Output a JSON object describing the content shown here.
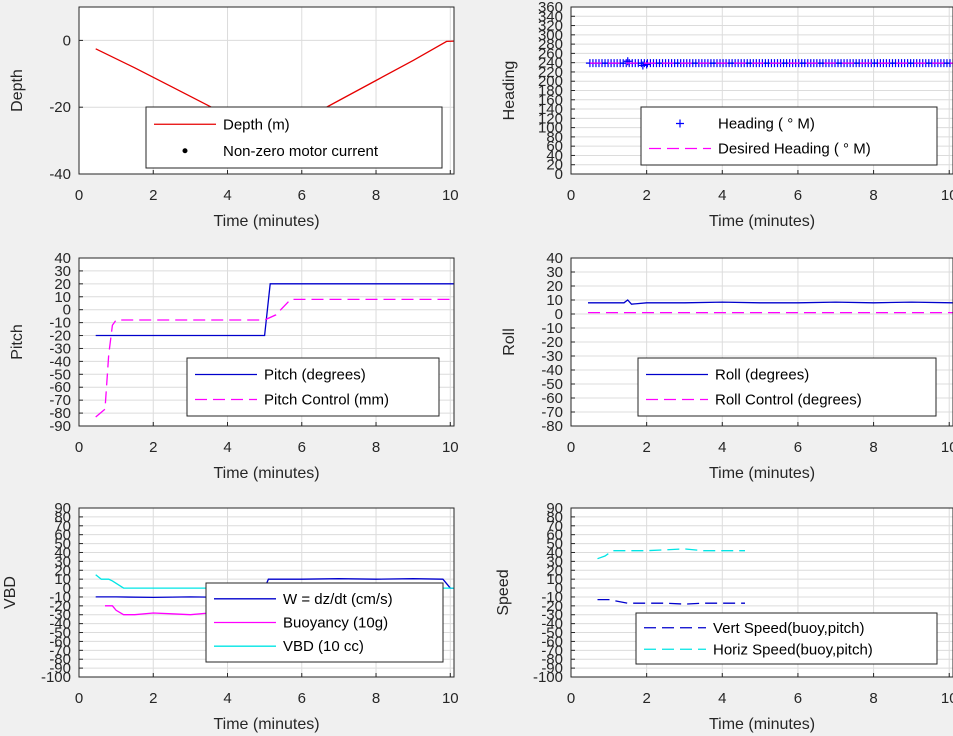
{
  "chart_data": [
    {
      "type": "line",
      "id": "depth",
      "xlabel": "Time (minutes)",
      "ylabel": "Depth",
      "xlim": [
        0,
        10.1
      ],
      "ylim": [
        -40,
        10
      ],
      "xticks": [
        "0",
        "2",
        "4",
        "6",
        "8",
        "10"
      ],
      "xtick_values": [
        0,
        2,
        4,
        6,
        8,
        10
      ],
      "yticks": [
        "0",
        "-20",
        "-40"
      ],
      "ytick_values": [
        0,
        -20,
        -40
      ],
      "grid": true,
      "legend_position": "bottom-center",
      "series": [
        {
          "name": "Depth (m)",
          "color": "#e60000",
          "style": "solid",
          "marker": "none",
          "x": [
            0.45,
            1.5,
            2.5,
            3.5,
            4.5,
            5.0,
            6.0,
            7.0,
            8.0,
            9.0,
            9.9,
            10.1
          ],
          "y": [
            -2.5,
            -8.2,
            -13.9,
            -19.6,
            -25.3,
            -29.6,
            -24.0,
            -18.0,
            -12.0,
            -6.0,
            -0.3,
            -0.2
          ]
        },
        {
          "name": "Non-zero motor current",
          "color": "#000000",
          "style": "none",
          "marker": "dot",
          "x": [
            5.25
          ],
          "y": [
            -28.0
          ]
        }
      ]
    },
    {
      "type": "scatter",
      "id": "heading",
      "xlabel": "Time (minutes)",
      "ylabel": "Heading",
      "xlim": [
        0,
        10.1
      ],
      "ylim": [
        0,
        360
      ],
      "xticks": [
        "0",
        "2",
        "4",
        "6",
        "8",
        "10"
      ],
      "xtick_values": [
        0,
        2,
        4,
        6,
        8,
        10
      ],
      "yticks": [
        "0",
        "20",
        "40",
        "60",
        "80",
        "100",
        "120",
        "140",
        "160",
        "180",
        "200",
        "220",
        "240",
        "260",
        "280",
        "300",
        "320",
        "340",
        "360"
      ],
      "ytick_values": [
        0,
        20,
        40,
        60,
        80,
        100,
        120,
        140,
        160,
        180,
        200,
        220,
        240,
        260,
        280,
        300,
        320,
        340,
        360
      ],
      "grid": true,
      "legend_position": "bottom-center",
      "series": [
        {
          "name": "Heading ( ° M)",
          "color": "#0000ff",
          "style": "none",
          "marker": "plus",
          "x_start": 0.5,
          "x_end": 10.1,
          "x_step": 0.08,
          "y_const": 239,
          "y_bumps": [
            [
              1.5,
              243
            ],
            [
              1.9,
              234
            ],
            [
              2.0,
              236
            ]
          ]
        },
        {
          "name": "Desired Heading ( ° M)",
          "color": "#ff00ff",
          "style": "dashed",
          "marker": "none",
          "x": [
            0.5,
            10.1
          ],
          "y": [
            239,
            239
          ]
        }
      ]
    },
    {
      "type": "line",
      "id": "pitch",
      "xlabel": "Time (minutes)",
      "ylabel": "Pitch",
      "xlim": [
        0,
        10.1
      ],
      "ylim": [
        -90,
        40
      ],
      "xticks": [
        "0",
        "2",
        "4",
        "6",
        "8",
        "10"
      ],
      "xtick_values": [
        0,
        2,
        4,
        6,
        8,
        10
      ],
      "yticks": [
        "40",
        "30",
        "20",
        "10",
        "0",
        "-10",
        "-20",
        "-30",
        "-40",
        "-50",
        "-60",
        "-70",
        "-80",
        "-90"
      ],
      "ytick_values": [
        40,
        30,
        20,
        10,
        0,
        -10,
        -20,
        -30,
        -40,
        -50,
        -60,
        -70,
        -80,
        -90
      ],
      "grid": true,
      "legend_position": "bottom-right",
      "series": [
        {
          "name": "Pitch (degrees)",
          "color": "#0000cc",
          "style": "solid",
          "marker": "none",
          "x": [
            0.45,
            5.0,
            5.15,
            10.1
          ],
          "y": [
            -20,
            -20,
            20,
            20
          ]
        },
        {
          "name": "Pitch Control (mm)",
          "color": "#ff00ff",
          "style": "dashed",
          "marker": "none",
          "x": [
            0.45,
            0.7,
            0.8,
            0.9,
            1.0,
            5.0,
            5.3,
            5.7,
            10.1
          ],
          "y": [
            -83,
            -77,
            -35,
            -12,
            -8,
            -8,
            -4,
            8,
            8
          ]
        }
      ]
    },
    {
      "type": "line",
      "id": "roll",
      "xlabel": "Time (minutes)",
      "ylabel": "Roll",
      "xlim": [
        0,
        10.1
      ],
      "ylim": [
        -80,
        40
      ],
      "xticks": [
        "0",
        "2",
        "4",
        "6",
        "8",
        "10"
      ],
      "xtick_values": [
        0,
        2,
        4,
        6,
        8,
        10
      ],
      "yticks": [
        "40",
        "30",
        "20",
        "10",
        "0",
        "-10",
        "-20",
        "-30",
        "-40",
        "-50",
        "-60",
        "-70",
        "-80"
      ],
      "ytick_values": [
        40,
        30,
        20,
        10,
        0,
        -10,
        -20,
        -30,
        -40,
        -50,
        -60,
        -70,
        -80
      ],
      "grid": true,
      "legend_position": "bottom-right",
      "series": [
        {
          "name": "Roll (degrees)",
          "color": "#0000cc",
          "style": "solid",
          "marker": "none",
          "x": [
            0.45,
            1.4,
            1.5,
            1.6,
            2.0,
            3.0,
            4.0,
            5.0,
            6.0,
            7.0,
            8.0,
            9.0,
            10.1
          ],
          "y": [
            8,
            8,
            10,
            7,
            8,
            8,
            8.5,
            8,
            8,
            8.5,
            8,
            8.5,
            8
          ]
        },
        {
          "name": "Roll Control (degrees)",
          "color": "#ff00ff",
          "style": "dashed",
          "marker": "none",
          "x": [
            0.45,
            10.1
          ],
          "y": [
            1,
            1
          ]
        }
      ]
    },
    {
      "type": "line",
      "id": "vbd",
      "xlabel": "Time (minutes)",
      "ylabel": "VBD",
      "xlim": [
        0,
        10.1
      ],
      "ylim": [
        -100,
        90
      ],
      "xticks": [
        "0",
        "2",
        "4",
        "6",
        "8",
        "10"
      ],
      "xtick_values": [
        0,
        2,
        4,
        6,
        8,
        10
      ],
      "yticks": [
        "90",
        "80",
        "70",
        "60",
        "50",
        "40",
        "30",
        "20",
        "10",
        "0",
        "-10",
        "-20",
        "-30",
        "-40",
        "-50",
        "-60",
        "-70",
        "-80",
        "-90",
        "-100"
      ],
      "ytick_values": [
        90,
        80,
        70,
        60,
        50,
        40,
        30,
        20,
        10,
        0,
        -10,
        -20,
        -30,
        -40,
        -50,
        -60,
        -70,
        -80,
        -90,
        -100
      ],
      "grid": true,
      "legend_position": "bottom-right",
      "series": [
        {
          "name": "W = dz/dt (cm/s)",
          "color": "#0000cc",
          "style": "solid",
          "marker": "none",
          "x": [
            0.45,
            1.0,
            2.0,
            3.0,
            4.0,
            4.9,
            5.1,
            6.0,
            7.0,
            8.0,
            9.0,
            9.8,
            10.0,
            10.1
          ],
          "y": [
            -10,
            -10,
            -10.5,
            -10,
            -10.5,
            -10,
            10,
            10,
            10.5,
            10,
            10.5,
            10,
            0,
            0
          ]
        },
        {
          "name": "Buoyancy (10g)",
          "color": "#ff00ff",
          "style": "solid",
          "marker": "none",
          "x": [
            0.7,
            0.9,
            1.0,
            1.2,
            1.5,
            2.0,
            2.5,
            3.0,
            3.5,
            4.0,
            4.7
          ],
          "y": [
            -20,
            -20,
            -25,
            -30,
            -30,
            -28,
            -29,
            -30,
            -28,
            -29,
            -29
          ]
        },
        {
          "name": "VBD (10 cc)",
          "color": "#00e5e5",
          "style": "solid",
          "marker": "none",
          "x": [
            0.45,
            0.6,
            0.8,
            0.9,
            1.2,
            2.0,
            5.0,
            10.0,
            10.1
          ],
          "y": [
            15,
            10,
            10,
            8,
            0,
            0,
            0,
            0,
            0
          ]
        }
      ]
    },
    {
      "type": "line",
      "id": "speed",
      "xlabel": "Time (minutes)",
      "ylabel": "Speed",
      "xlim": [
        0,
        10.1
      ],
      "ylim": [
        -100,
        90
      ],
      "xticks": [
        "0",
        "2",
        "4",
        "6",
        "8",
        "10"
      ],
      "xtick_values": [
        0,
        2,
        4,
        6,
        8,
        10
      ],
      "yticks": [
        "90",
        "80",
        "70",
        "60",
        "50",
        "40",
        "30",
        "20",
        "10",
        "0",
        "-10",
        "-20",
        "-30",
        "-40",
        "-50",
        "-60",
        "-70",
        "-80",
        "-90",
        "-100"
      ],
      "ytick_values": [
        90,
        80,
        70,
        60,
        50,
        40,
        30,
        20,
        10,
        0,
        -10,
        -20,
        -30,
        -40,
        -50,
        -60,
        -70,
        -80,
        -90,
        -100
      ],
      "grid": true,
      "legend_position": "bottom-right",
      "series": [
        {
          "name": "Vert Speed(buoy,pitch)",
          "color": "#0000cc",
          "style": "dashed",
          "marker": "none",
          "x": [
            0.7,
            1.0,
            1.5,
            2.0,
            2.5,
            3.0,
            3.5,
            4.0,
            4.6
          ],
          "y": [
            -13,
            -13,
            -17,
            -17,
            -17,
            -18,
            -17,
            -17,
            -17
          ]
        },
        {
          "name": "Horiz Speed(buoy,pitch)",
          "color": "#00e5e5",
          "style": "dashed",
          "marker": "none",
          "x": [
            0.7,
            0.9,
            1.1,
            1.5,
            2.0,
            2.5,
            3.0,
            3.5,
            4.0,
            4.6
          ],
          "y": [
            33,
            36,
            42,
            42,
            42,
            43,
            44,
            42,
            42,
            42
          ]
        }
      ]
    }
  ]
}
